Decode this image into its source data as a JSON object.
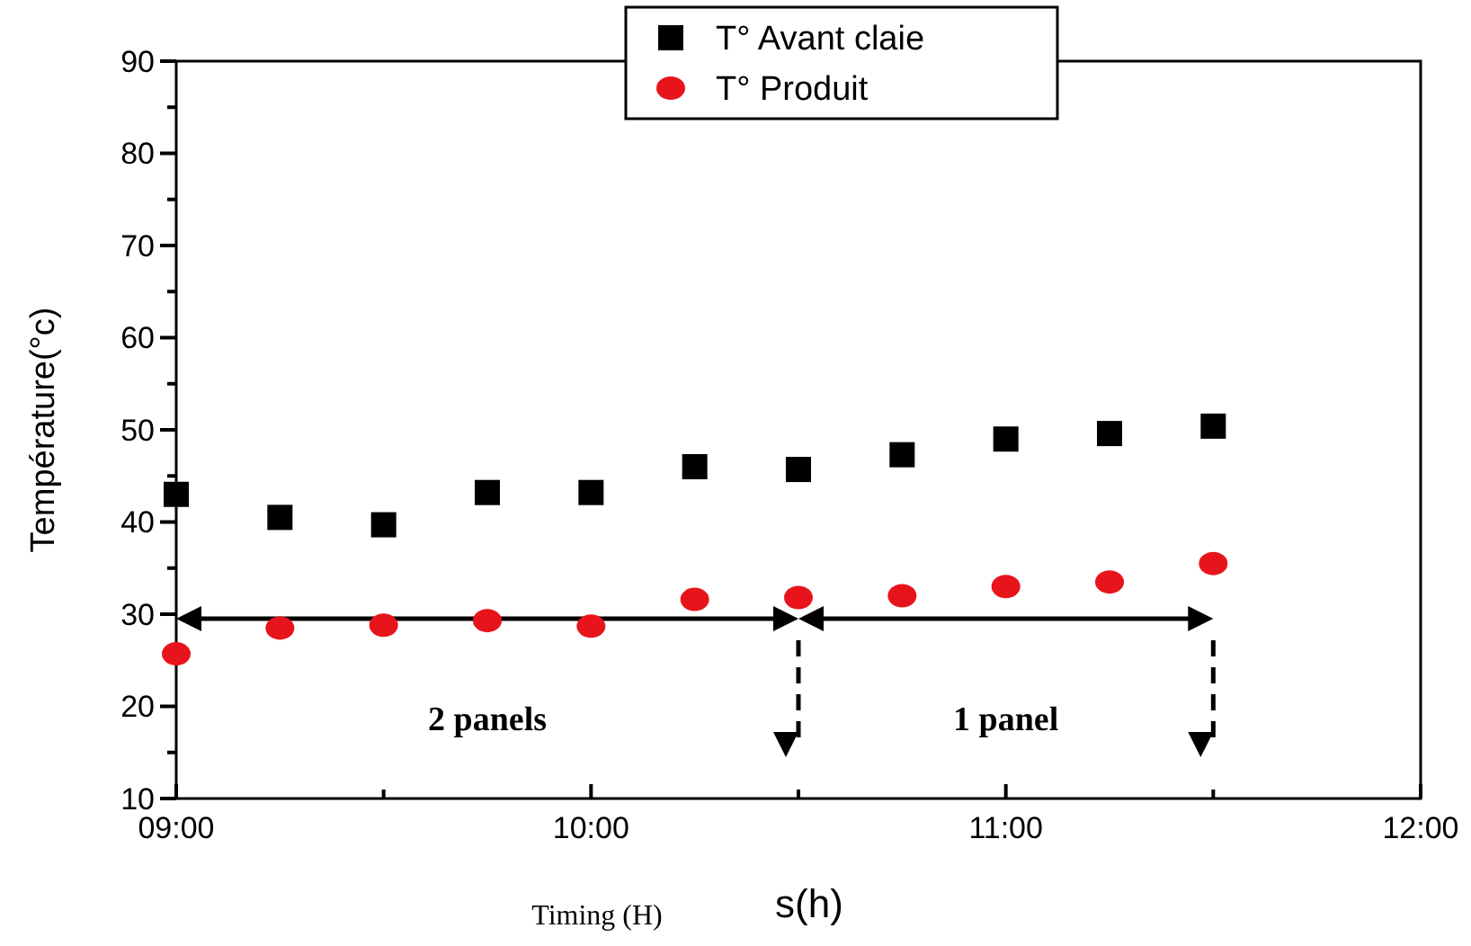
{
  "chart_data": {
    "type": "scatter",
    "xlabel": "Timing (H)",
    "ylabel": "Température(°c)",
    "x": [
      9,
      9.25,
      9.5,
      9.75,
      10,
      10.25,
      10.5,
      10.75,
      11,
      11.25,
      11.5
    ],
    "series": [
      {
        "name": "T° Avant claie",
        "color": "#000000",
        "marker": "square",
        "values": [
          43,
          40.5,
          39.7,
          43.2,
          43.2,
          46,
          45.7,
          47.3,
          49,
          49.6,
          50.4
        ]
      },
      {
        "name": "T° Produit",
        "color": "#e8141c",
        "marker": "circle",
        "values": [
          25.7,
          28.5,
          28.8,
          29.3,
          28.7,
          31.6,
          31.8,
          32,
          33,
          33.5,
          35.5
        ]
      }
    ],
    "xlim": [
      9,
      12
    ],
    "xticks": [
      {
        "value": 9,
        "label": "09:00"
      },
      {
        "value": 9.5,
        "label": null
      },
      {
        "value": 10,
        "label": "10:00"
      },
      {
        "value": 10.5,
        "label": null
      },
      {
        "value": 11,
        "label": "11:00"
      },
      {
        "value": 11.5,
        "label": null
      },
      {
        "value": 12,
        "label": "12:00"
      }
    ],
    "ylim": [
      10,
      90
    ],
    "yticks": [
      10,
      {
        "value": 15,
        "label": null
      },
      20,
      {
        "value": 25,
        "label": null
      },
      30,
      {
        "value": 35,
        "label": null
      },
      40,
      {
        "value": 45,
        "label": null
      },
      50,
      {
        "value": 55,
        "label": null
      },
      60,
      {
        "value": 65,
        "label": null
      },
      70,
      {
        "value": 75,
        "label": null
      },
      80,
      {
        "value": 85,
        "label": null
      },
      90
    ],
    "ref_lines": [
      {
        "axis": "x",
        "value": 10.5,
        "line_style": "dashed"
      },
      {
        "axis": "x",
        "value": 11.5,
        "line_style": "dashed"
      }
    ],
    "annotations": [
      "2 panels",
      "1 panel",
      "s(h)"
    ],
    "legend": "top",
    "grid": false
  }
}
